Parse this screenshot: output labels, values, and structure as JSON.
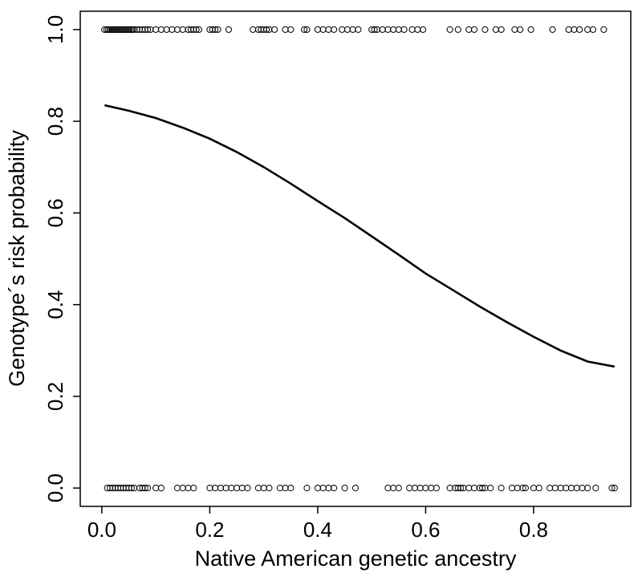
{
  "chart_data": {
    "type": "scatter",
    "title": "",
    "xlabel": "Native American genetic ancestry",
    "ylabel": "Genotype´s risk probability",
    "xlim": [
      -0.04,
      0.98
    ],
    "ylim": [
      -0.04,
      1.04
    ],
    "xticks": [
      0.0,
      0.2,
      0.4,
      0.6,
      0.8
    ],
    "xtick_labels": [
      "0.0",
      "0.2",
      "0.4",
      "0.6",
      "0.8"
    ],
    "yticks": [
      0.0,
      0.2,
      0.4,
      0.6,
      0.8,
      1.0
    ],
    "ytick_labels": [
      "0.0",
      "0.2",
      "0.4",
      "0.6",
      "0.8",
      "1.0"
    ],
    "grid": false,
    "series": [
      {
        "marker": "open-circle",
        "y": 1,
        "x": [
          0.005,
          0.009,
          0.012,
          0.015,
          0.018,
          0.021,
          0.024,
          0.027,
          0.03,
          0.033,
          0.036,
          0.039,
          0.042,
          0.045,
          0.048,
          0.051,
          0.054,
          0.057,
          0.06,
          0.065,
          0.07,
          0.075,
          0.08,
          0.085,
          0.09,
          0.1,
          0.11,
          0.12,
          0.13,
          0.14,
          0.15,
          0.16,
          0.165,
          0.17,
          0.175,
          0.18,
          0.2,
          0.205,
          0.21,
          0.215,
          0.235,
          0.28,
          0.29,
          0.295,
          0.3,
          0.305,
          0.31,
          0.32,
          0.34,
          0.35,
          0.375,
          0.38,
          0.4,
          0.41,
          0.42,
          0.43,
          0.445,
          0.455,
          0.465,
          0.475,
          0.5,
          0.505,
          0.51,
          0.52,
          0.53,
          0.54,
          0.55,
          0.56,
          0.575,
          0.585,
          0.595,
          0.645,
          0.66,
          0.68,
          0.69,
          0.71,
          0.73,
          0.74,
          0.765,
          0.775,
          0.795,
          0.835,
          0.865,
          0.875,
          0.885,
          0.9,
          0.91,
          0.93
        ]
      },
      {
        "marker": "open-circle",
        "y": 0,
        "x": [
          0.01,
          0.015,
          0.02,
          0.025,
          0.03,
          0.035,
          0.04,
          0.045,
          0.05,
          0.055,
          0.06,
          0.07,
          0.075,
          0.08,
          0.085,
          0.1,
          0.11,
          0.14,
          0.15,
          0.16,
          0.17,
          0.2,
          0.21,
          0.22,
          0.23,
          0.24,
          0.25,
          0.26,
          0.27,
          0.29,
          0.3,
          0.31,
          0.33,
          0.34,
          0.35,
          0.38,
          0.4,
          0.41,
          0.42,
          0.43,
          0.45,
          0.47,
          0.53,
          0.54,
          0.55,
          0.57,
          0.58,
          0.59,
          0.6,
          0.61,
          0.62,
          0.645,
          0.655,
          0.66,
          0.665,
          0.67,
          0.68,
          0.69,
          0.7,
          0.705,
          0.71,
          0.72,
          0.74,
          0.76,
          0.77,
          0.78,
          0.785,
          0.8,
          0.81,
          0.83,
          0.84,
          0.85,
          0.86,
          0.87,
          0.88,
          0.89,
          0.9,
          0.915,
          0.945,
          0.95
        ]
      }
    ],
    "curve": {
      "type": "line",
      "x": [
        0.005,
        0.05,
        0.1,
        0.15,
        0.2,
        0.25,
        0.3,
        0.35,
        0.4,
        0.45,
        0.5,
        0.55,
        0.6,
        0.65,
        0.7,
        0.75,
        0.8,
        0.85,
        0.9,
        0.95
      ],
      "y": [
        0.835,
        0.823,
        0.807,
        0.786,
        0.762,
        0.733,
        0.7,
        0.664,
        0.626,
        0.589,
        0.549,
        0.509,
        0.468,
        0.432,
        0.396,
        0.362,
        0.33,
        0.3,
        0.276,
        0.265
      ]
    }
  }
}
